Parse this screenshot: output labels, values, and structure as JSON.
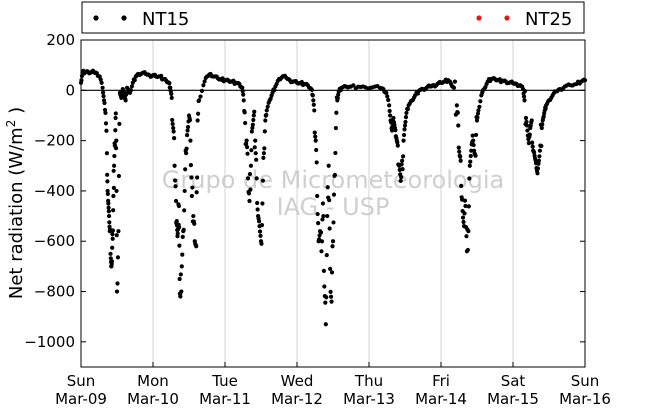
{
  "chart_data": {
    "type": "scatter",
    "title": "",
    "ylabel_text": "Net radiation (W/m",
    "ylabel_sup": "2",
    "ylabel_close": " )",
    "xlabel": "",
    "ylim": [
      -1100,
      200
    ],
    "xlim": [
      0,
      7
    ],
    "grid": "vertical",
    "legend_placement": "top",
    "watermark": [
      "Grupo de Micrometeorologia",
      "IAG - USP"
    ],
    "yticks": [
      {
        "value": 200,
        "label": "200"
      },
      {
        "value": 0,
        "label": "0"
      },
      {
        "value": -200,
        "label": "−200"
      },
      {
        "value": -400,
        "label": "−400"
      },
      {
        "value": -600,
        "label": "−600"
      },
      {
        "value": -800,
        "label": "−800"
      },
      {
        "value": -1000,
        "label": "−1000"
      }
    ],
    "xticks": [
      {
        "day": 0,
        "line1": "Sun",
        "line2": "Mar-09"
      },
      {
        "day": 1,
        "line1": "Mon",
        "line2": "Mar-10"
      },
      {
        "day": 2,
        "line1": "Tue",
        "line2": "Mar-11"
      },
      {
        "day": 3,
        "line1": "Wed",
        "line2": "Mar-12"
      },
      {
        "day": 4,
        "line1": "Thu",
        "line2": "Mar-13"
      },
      {
        "day": 5,
        "line1": "Fri",
        "line2": "Mar-14"
      },
      {
        "day": 6,
        "line1": "Sat",
        "line2": "Mar-15"
      },
      {
        "day": 7,
        "line1": "Sun",
        "line2": "Mar-16"
      }
    ],
    "series": [
      {
        "name": "NT15",
        "color": "#000000",
        "points": [
          [
            0.0,
            30
          ],
          [
            0.02,
            72
          ],
          [
            0.06,
            74
          ],
          [
            0.1,
            73
          ],
          [
            0.14,
            71
          ],
          [
            0.18,
            72
          ],
          [
            0.22,
            68
          ],
          [
            0.26,
            55
          ],
          [
            0.3,
            10
          ],
          [
            0.32,
            -40
          ],
          [
            0.34,
            -90
          ],
          [
            0.36,
            -250
          ],
          [
            0.37,
            -400
          ],
          [
            0.38,
            -450
          ],
          [
            0.39,
            -500
          ],
          [
            0.4,
            -560
          ],
          [
            0.41,
            -650
          ],
          [
            0.42,
            -700
          ],
          [
            0.43,
            -680
          ],
          [
            0.44,
            -590
          ],
          [
            0.45,
            -420
          ],
          [
            0.46,
            -300
          ],
          [
            0.47,
            -220
          ],
          [
            0.48,
            -110
          ],
          [
            0.49,
            -200
          ],
          [
            0.5,
            -800
          ],
          [
            0.52,
            -560
          ],
          [
            0.54,
            -10
          ],
          [
            0.56,
            -30
          ],
          [
            0.58,
            5
          ],
          [
            0.6,
            -20
          ],
          [
            0.62,
            -40
          ],
          [
            0.64,
            10
          ],
          [
            0.68,
            -10
          ],
          [
            0.72,
            30
          ],
          [
            0.76,
            55
          ],
          [
            0.8,
            65
          ],
          [
            0.85,
            68
          ],
          [
            0.9,
            65
          ],
          [
            0.95,
            60
          ],
          [
            1.0,
            60
          ],
          [
            1.04,
            55
          ],
          [
            1.1,
            55
          ],
          [
            1.14,
            45
          ],
          [
            1.18,
            40
          ],
          [
            1.22,
            30
          ],
          [
            1.24,
            10
          ],
          [
            1.26,
            -30
          ],
          [
            1.28,
            -150
          ],
          [
            1.3,
            -300
          ],
          [
            1.32,
            -440
          ],
          [
            1.33,
            -520
          ],
          [
            1.34,
            -580
          ],
          [
            1.35,
            -540
          ],
          [
            1.36,
            -460
          ],
          [
            1.37,
            -750
          ],
          [
            1.38,
            -820
          ],
          [
            1.4,
            -700
          ],
          [
            1.42,
            -560
          ],
          [
            1.44,
            -400
          ],
          [
            1.46,
            -250
          ],
          [
            1.48,
            -160
          ],
          [
            1.5,
            -100
          ],
          [
            1.52,
            -200
          ],
          [
            1.54,
            -420
          ],
          [
            1.56,
            -500
          ],
          [
            1.58,
            -600
          ],
          [
            1.6,
            -620
          ],
          [
            1.62,
            -120
          ],
          [
            1.64,
            -40
          ],
          [
            1.7,
            20
          ],
          [
            1.75,
            55
          ],
          [
            1.8,
            65
          ],
          [
            1.85,
            55
          ],
          [
            1.9,
            48
          ],
          [
            1.95,
            42
          ],
          [
            2.0,
            40
          ],
          [
            2.05,
            38
          ],
          [
            2.1,
            35
          ],
          [
            2.15,
            30
          ],
          [
            2.2,
            25
          ],
          [
            2.24,
            10
          ],
          [
            2.26,
            -40
          ],
          [
            2.28,
            -130
          ],
          [
            2.3,
            -200
          ],
          [
            2.32,
            -350
          ],
          [
            2.34,
            -440
          ],
          [
            2.36,
            -300
          ],
          [
            2.38,
            -150
          ],
          [
            2.4,
            -100
          ],
          [
            2.42,
            -200
          ],
          [
            2.44,
            -350
          ],
          [
            2.46,
            -500
          ],
          [
            2.48,
            -540
          ],
          [
            2.5,
            -600
          ],
          [
            2.52,
            -450
          ],
          [
            2.54,
            -250
          ],
          [
            2.56,
            -120
          ],
          [
            2.58,
            -80
          ],
          [
            2.62,
            -40
          ],
          [
            2.66,
            -10
          ],
          [
            2.7,
            15
          ],
          [
            2.75,
            45
          ],
          [
            2.8,
            55
          ],
          [
            2.85,
            50
          ],
          [
            2.9,
            40
          ],
          [
            2.95,
            35
          ],
          [
            3.0,
            30
          ],
          [
            3.05,
            28
          ],
          [
            3.1,
            25
          ],
          [
            3.15,
            20
          ],
          [
            3.2,
            5
          ],
          [
            3.22,
            -20
          ],
          [
            3.24,
            -80
          ],
          [
            3.26,
            -200
          ],
          [
            3.28,
            -420
          ],
          [
            3.3,
            -600
          ],
          [
            3.32,
            -560
          ],
          [
            3.34,
            -640
          ],
          [
            3.36,
            -450
          ],
          [
            3.38,
            -780
          ],
          [
            3.4,
            -930
          ],
          [
            3.42,
            -500
          ],
          [
            3.44,
            -300
          ],
          [
            3.46,
            -710
          ],
          [
            3.48,
            -840
          ],
          [
            3.5,
            -600
          ],
          [
            3.52,
            -340
          ],
          [
            3.54,
            -150
          ],
          [
            3.56,
            -40
          ],
          [
            3.58,
            -5
          ],
          [
            3.62,
            10
          ],
          [
            3.68,
            15
          ],
          [
            3.75,
            15
          ],
          [
            3.85,
            14
          ],
          [
            3.95,
            12
          ],
          [
            4.05,
            12
          ],
          [
            4.15,
            10
          ],
          [
            4.2,
            5
          ],
          [
            4.24,
            -10
          ],
          [
            4.28,
            -60
          ],
          [
            4.3,
            -120
          ],
          [
            4.32,
            -160
          ],
          [
            4.34,
            -110
          ],
          [
            4.36,
            -150
          ],
          [
            4.38,
            -190
          ],
          [
            4.4,
            -220
          ],
          [
            4.42,
            -300
          ],
          [
            4.44,
            -360
          ],
          [
            4.46,
            -280
          ],
          [
            4.48,
            -200
          ],
          [
            4.5,
            -140
          ],
          [
            4.52,
            -90
          ],
          [
            4.55,
            -60
          ],
          [
            4.6,
            -40
          ],
          [
            4.64,
            -20
          ],
          [
            4.7,
            0
          ],
          [
            4.75,
            5
          ],
          [
            4.8,
            10
          ],
          [
            4.85,
            15
          ],
          [
            4.9,
            20
          ],
          [
            4.95,
            25
          ],
          [
            5.0,
            30
          ],
          [
            5.05,
            35
          ],
          [
            5.1,
            40
          ],
          [
            5.14,
            25
          ],
          [
            5.18,
            10
          ],
          [
            5.22,
            -60
          ],
          [
            5.24,
            -140
          ],
          [
            5.26,
            -260
          ],
          [
            5.28,
            -380
          ],
          [
            5.3,
            -480
          ],
          [
            5.32,
            -540
          ],
          [
            5.34,
            -460
          ],
          [
            5.36,
            -640
          ],
          [
            5.38,
            -560
          ],
          [
            5.4,
            -300
          ],
          [
            5.42,
            -240
          ],
          [
            5.44,
            -180
          ],
          [
            5.46,
            -240
          ],
          [
            5.48,
            -260
          ],
          [
            5.5,
            -120
          ],
          [
            5.52,
            -80
          ],
          [
            5.56,
            -20
          ],
          [
            5.6,
            5
          ],
          [
            5.65,
            35
          ],
          [
            5.7,
            45
          ],
          [
            5.75,
            45
          ],
          [
            5.8,
            40
          ],
          [
            5.85,
            38
          ],
          [
            5.9,
            35
          ],
          [
            5.95,
            30
          ],
          [
            6.0,
            28
          ],
          [
            6.05,
            25
          ],
          [
            6.1,
            20
          ],
          [
            6.14,
            5
          ],
          [
            6.16,
            -40
          ],
          [
            6.18,
            -110
          ],
          [
            6.2,
            -160
          ],
          [
            6.22,
            -210
          ],
          [
            6.24,
            -150
          ],
          [
            6.26,
            -120
          ],
          [
            6.28,
            -240
          ],
          [
            6.3,
            -260
          ],
          [
            6.32,
            -290
          ],
          [
            6.34,
            -330
          ],
          [
            6.36,
            -280
          ],
          [
            6.38,
            -220
          ],
          [
            6.4,
            -150
          ],
          [
            6.42,
            -110
          ],
          [
            6.44,
            -80
          ],
          [
            6.46,
            -60
          ],
          [
            6.5,
            -40
          ],
          [
            6.55,
            -20
          ],
          [
            6.6,
            -5
          ],
          [
            6.65,
            5
          ],
          [
            6.72,
            15
          ],
          [
            6.8,
            20
          ],
          [
            6.88,
            25
          ],
          [
            6.95,
            35
          ],
          [
            7.0,
            40
          ]
        ]
      },
      {
        "name": "NT25",
        "color": "#e31a1c",
        "points": []
      }
    ]
  }
}
